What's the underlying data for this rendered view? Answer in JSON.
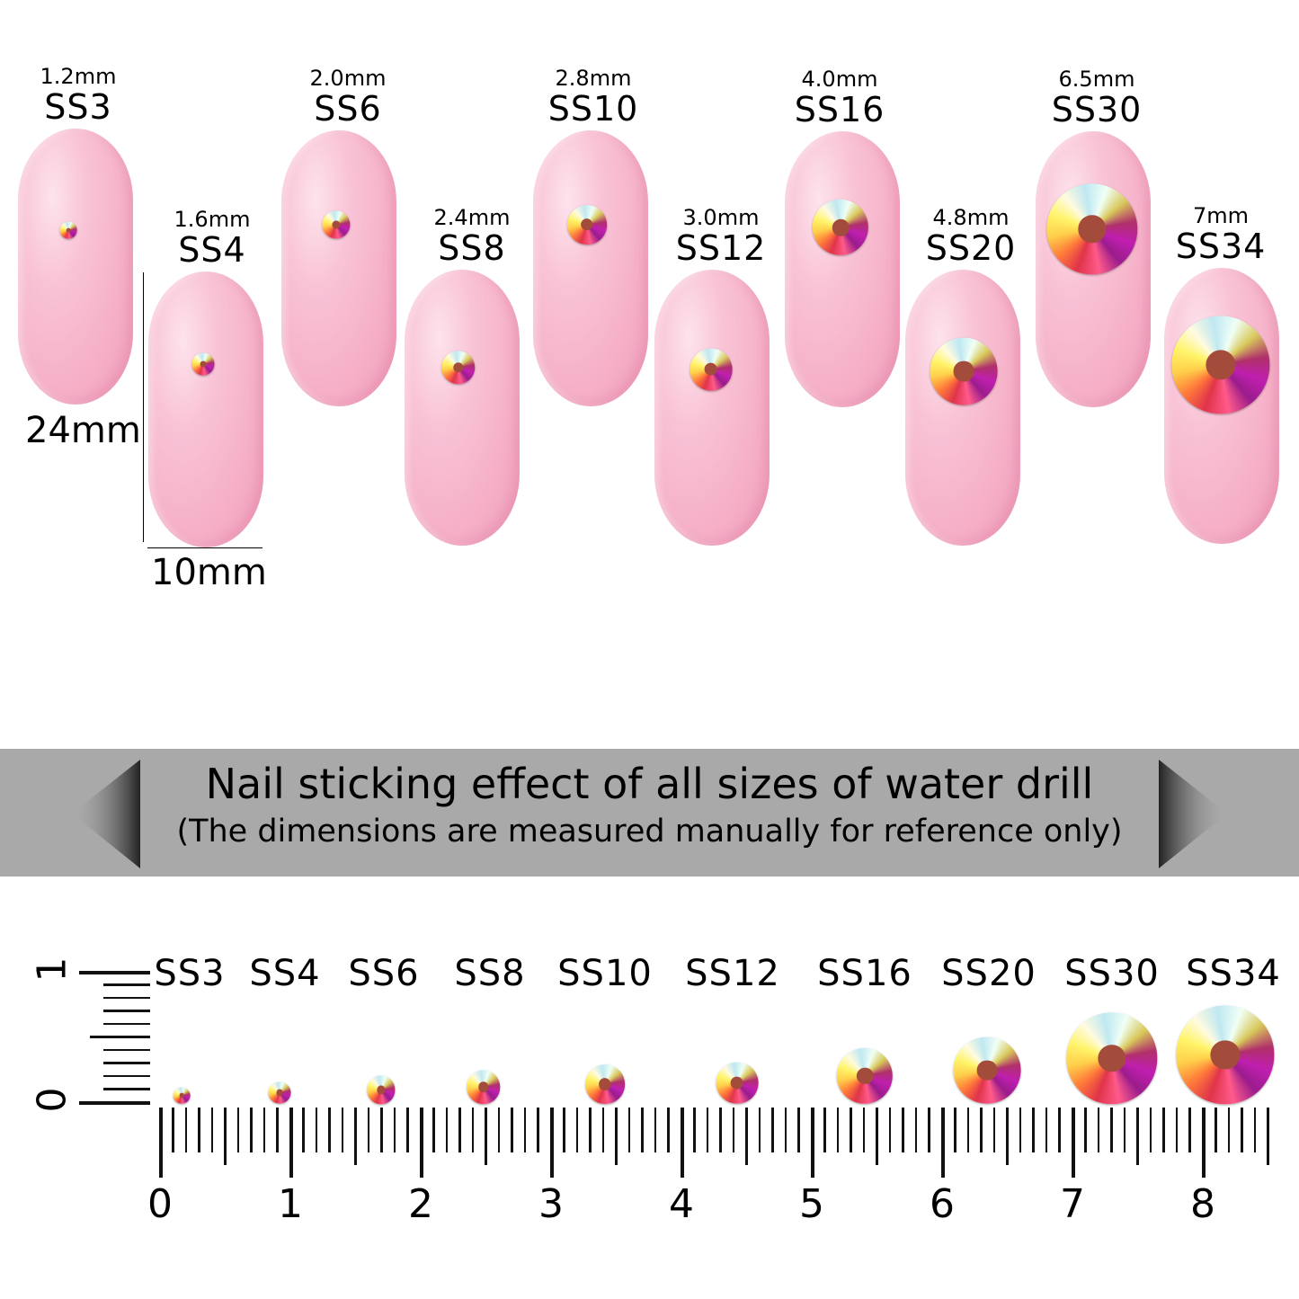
{
  "nails": [
    {
      "mm": "1.2mm",
      "ss": "SS3"
    },
    {
      "mm": "1.6mm",
      "ss": "SS4"
    },
    {
      "mm": "2.0mm",
      "ss": "SS6"
    },
    {
      "mm": "2.4mm",
      "ss": "SS8"
    },
    {
      "mm": "2.8mm",
      "ss": "SS10"
    },
    {
      "mm": "3.0mm",
      "ss": "SS12"
    },
    {
      "mm": "4.0mm",
      "ss": "SS16"
    },
    {
      "mm": "4.8mm",
      "ss": "SS20"
    },
    {
      "mm": "6.5mm",
      "ss": "SS30"
    },
    {
      "mm": "7mm",
      "ss": "SS34"
    }
  ],
  "dimensions": {
    "height": "24mm",
    "width": "10mm"
  },
  "banner": {
    "title": "Nail sticking effect of all sizes of water drill",
    "subtitle": "(The dimensions are measured manually for reference only)"
  },
  "ruler": {
    "sizes": [
      "SS3",
      "SS4",
      "SS6",
      "SS8",
      "SS10",
      "SS12",
      "SS16",
      "SS20",
      "SS30",
      "SS34"
    ],
    "numbers": [
      "0",
      "1",
      "2",
      "3",
      "4",
      "5",
      "6",
      "7",
      "8"
    ],
    "vertical_numbers": [
      "0",
      "1"
    ]
  },
  "colors": {
    "nail": "#f5aec6",
    "banner": "#a9a9a9"
  }
}
